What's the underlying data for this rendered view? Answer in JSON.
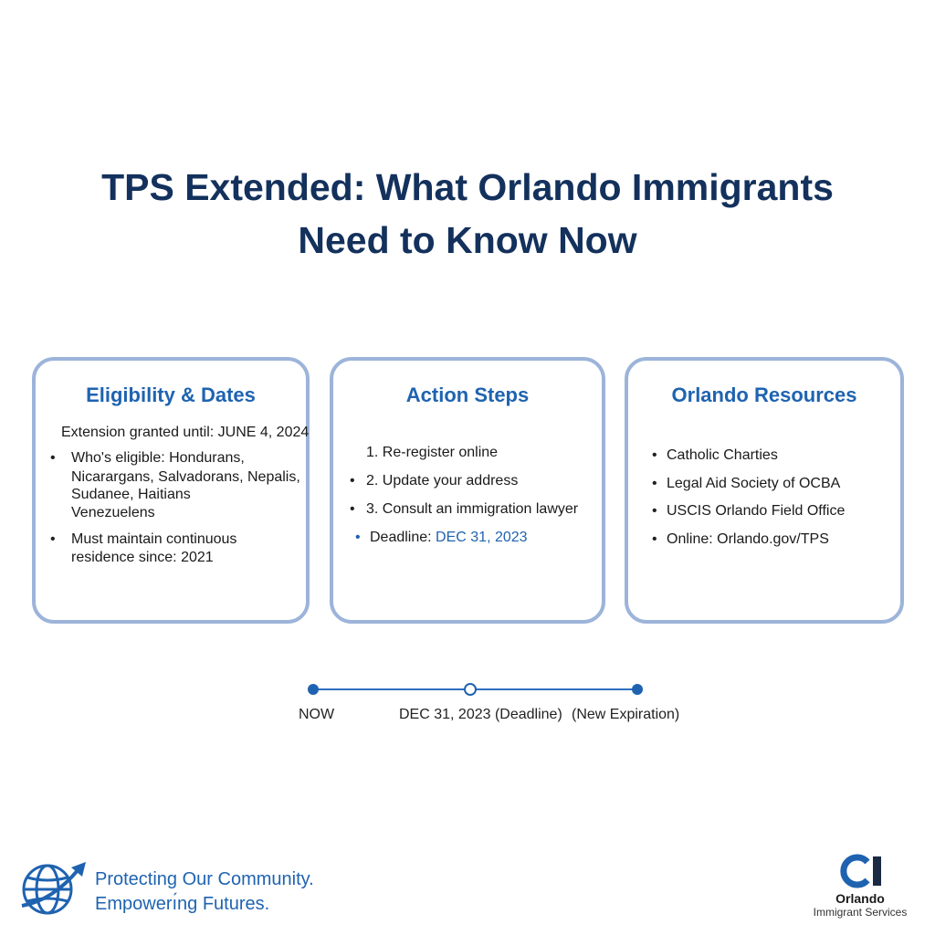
{
  "headline": {
    "line1": "TPS Extended: What Orlando Immigrants",
    "line2": "Need to Know Now"
  },
  "cards": {
    "eligibility": {
      "title": "Eligibility & Dates",
      "extension": "Extension granted until: JUNE 4, 2024",
      "eligible_lines": [
        "Who's eligible: Hondurans,",
        "Nicarargans, Salvadorans, Nepalis,",
        "Sudanee, Haitians",
        "Venezuelens"
      ],
      "residence_lines": [
        "Must maintain continuous",
        "residence since: 2021"
      ]
    },
    "action": {
      "title": "Action Steps",
      "steps": [
        "1. Re-register online",
        "2. Update your address",
        "3. Consult an immigration lawyer"
      ],
      "deadline_label": "Deadline: ",
      "deadline_value": "DEC 31, 2023"
    },
    "resources": {
      "title": "Orlando Resources",
      "items": [
        "Catholic Charties",
        "Legal Aid Society of OCBA",
        "USCIS Orlando Field Office",
        "Online: Orlando.gov/TPS"
      ]
    }
  },
  "timeline": {
    "labels": [
      "NOW",
      "DEC 31, 2023 (Deadline)",
      "(New Expiration)"
    ]
  },
  "footer": {
    "tagline_line1": "Protecting Our Community.",
    "tagline_line2": "Empowerı́ng Futures.",
    "logo_letters": "OI",
    "logo_name": "Orlando",
    "logo_sub": "Immigrant Services",
    "icon": "globe-arrow-icon"
  },
  "colors": {
    "headline": "#13315c",
    "accent": "#1f63b0",
    "card_border": "#9db4da"
  }
}
